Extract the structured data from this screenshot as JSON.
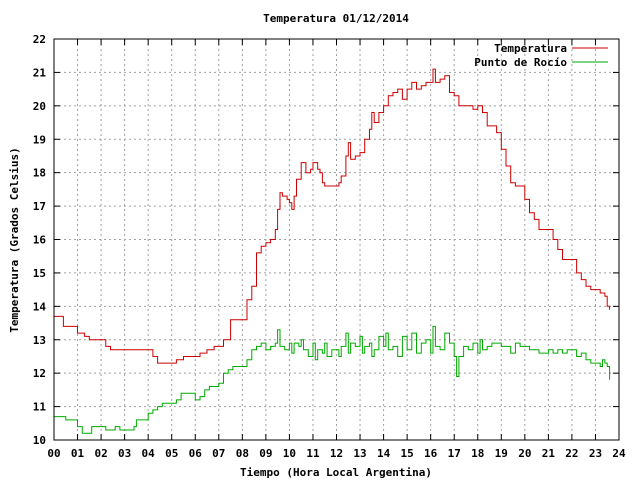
{
  "chart_data": {
    "type": "line",
    "title": "Temperatura 01/12/2014",
    "xlabel": "Tiempo (Hora Local Argentina)",
    "ylabel": "Temperatura (Grados Celsius)",
    "xlim": [
      0,
      24
    ],
    "ylim": [
      10,
      22
    ],
    "x_ticks": [
      "00",
      "01",
      "02",
      "03",
      "04",
      "05",
      "06",
      "07",
      "08",
      "09",
      "10",
      "11",
      "12",
      "13",
      "14",
      "15",
      "16",
      "17",
      "18",
      "19",
      "20",
      "21",
      "22",
      "23",
      "24"
    ],
    "y_ticks": [
      "10",
      "11",
      "12",
      "13",
      "14",
      "15",
      "16",
      "17",
      "18",
      "19",
      "20",
      "21",
      "22"
    ],
    "grid": true,
    "legend_position": "top-right",
    "series": [
      {
        "name": "Temperatura",
        "color": "#cc0000",
        "points": [
          [
            0.0,
            13.7
          ],
          [
            0.2,
            13.7
          ],
          [
            0.4,
            13.4
          ],
          [
            0.6,
            13.4
          ],
          [
            0.9,
            13.4
          ],
          [
            1.0,
            13.2
          ],
          [
            1.3,
            13.1
          ],
          [
            1.5,
            13.0
          ],
          [
            1.8,
            13.0
          ],
          [
            2.0,
            13.0
          ],
          [
            2.2,
            12.8
          ],
          [
            2.4,
            12.7
          ],
          [
            2.8,
            12.7
          ],
          [
            3.2,
            12.7
          ],
          [
            3.6,
            12.7
          ],
          [
            4.0,
            12.7
          ],
          [
            4.2,
            12.5
          ],
          [
            4.4,
            12.3
          ],
          [
            4.8,
            12.3
          ],
          [
            5.0,
            12.3
          ],
          [
            5.2,
            12.4
          ],
          [
            5.5,
            12.5
          ],
          [
            5.8,
            12.5
          ],
          [
            6.0,
            12.5
          ],
          [
            6.2,
            12.6
          ],
          [
            6.5,
            12.7
          ],
          [
            6.8,
            12.8
          ],
          [
            7.0,
            12.8
          ],
          [
            7.2,
            13.0
          ],
          [
            7.5,
            13.6
          ],
          [
            7.8,
            13.6
          ],
          [
            8.0,
            13.6
          ],
          [
            8.2,
            14.2
          ],
          [
            8.4,
            14.6
          ],
          [
            8.6,
            15.6
          ],
          [
            8.8,
            15.8
          ],
          [
            9.0,
            15.9
          ],
          [
            9.2,
            16.0
          ],
          [
            9.4,
            16.3
          ],
          [
            9.5,
            16.9
          ],
          [
            9.6,
            17.4
          ],
          [
            9.7,
            17.3
          ],
          [
            9.9,
            17.2
          ],
          [
            10.0,
            17.1
          ],
          [
            10.1,
            16.9
          ],
          [
            10.2,
            17.3
          ],
          [
            10.3,
            17.8
          ],
          [
            10.5,
            18.3
          ],
          [
            10.7,
            18.0
          ],
          [
            10.9,
            18.1
          ],
          [
            11.0,
            18.3
          ],
          [
            11.2,
            18.1
          ],
          [
            11.3,
            18.0
          ],
          [
            11.4,
            17.7
          ],
          [
            11.5,
            17.6
          ],
          [
            11.8,
            17.6
          ],
          [
            12.1,
            17.7
          ],
          [
            12.2,
            17.9
          ],
          [
            12.4,
            18.5
          ],
          [
            12.5,
            18.9
          ],
          [
            12.6,
            18.4
          ],
          [
            12.8,
            18.5
          ],
          [
            13.0,
            18.6
          ],
          [
            13.2,
            19.0
          ],
          [
            13.4,
            19.3
          ],
          [
            13.5,
            19.8
          ],
          [
            13.6,
            19.5
          ],
          [
            13.8,
            19.8
          ],
          [
            14.0,
            20.0
          ],
          [
            14.2,
            20.3
          ],
          [
            14.4,
            20.4
          ],
          [
            14.6,
            20.5
          ],
          [
            14.8,
            20.2
          ],
          [
            15.0,
            20.5
          ],
          [
            15.2,
            20.7
          ],
          [
            15.4,
            20.5
          ],
          [
            15.6,
            20.6
          ],
          [
            15.8,
            20.7
          ],
          [
            16.0,
            20.7
          ],
          [
            16.1,
            21.1
          ],
          [
            16.2,
            20.7
          ],
          [
            16.4,
            20.8
          ],
          [
            16.6,
            20.9
          ],
          [
            16.8,
            20.4
          ],
          [
            17.0,
            20.3
          ],
          [
            17.2,
            20.0
          ],
          [
            17.4,
            20.0
          ],
          [
            17.6,
            20.0
          ],
          [
            17.8,
            19.9
          ],
          [
            18.0,
            20.0
          ],
          [
            18.2,
            19.8
          ],
          [
            18.4,
            19.4
          ],
          [
            18.6,
            19.4
          ],
          [
            18.8,
            19.2
          ],
          [
            19.0,
            18.7
          ],
          [
            19.2,
            18.2
          ],
          [
            19.4,
            17.7
          ],
          [
            19.6,
            17.6
          ],
          [
            19.8,
            17.6
          ],
          [
            20.0,
            17.2
          ],
          [
            20.2,
            16.8
          ],
          [
            20.4,
            16.6
          ],
          [
            20.6,
            16.3
          ],
          [
            20.8,
            16.3
          ],
          [
            21.0,
            16.3
          ],
          [
            21.2,
            16.0
          ],
          [
            21.4,
            15.7
          ],
          [
            21.6,
            15.4
          ],
          [
            21.8,
            15.4
          ],
          [
            22.0,
            15.4
          ],
          [
            22.2,
            15.0
          ],
          [
            22.4,
            14.8
          ],
          [
            22.6,
            14.6
          ],
          [
            22.8,
            14.5
          ],
          [
            23.0,
            14.5
          ],
          [
            23.2,
            14.4
          ],
          [
            23.4,
            14.3
          ],
          [
            23.5,
            14.0
          ],
          [
            23.6,
            13.9
          ]
        ]
      },
      {
        "name": "Punto de Rocío",
        "color": "#00aa00",
        "points": [
          [
            0.0,
            10.7
          ],
          [
            0.3,
            10.7
          ],
          [
            0.5,
            10.6
          ],
          [
            0.8,
            10.6
          ],
          [
            1.0,
            10.4
          ],
          [
            1.2,
            10.2
          ],
          [
            1.5,
            10.2
          ],
          [
            1.6,
            10.4
          ],
          [
            2.0,
            10.4
          ],
          [
            2.2,
            10.3
          ],
          [
            2.6,
            10.4
          ],
          [
            2.8,
            10.3
          ],
          [
            3.0,
            10.3
          ],
          [
            3.2,
            10.3
          ],
          [
            3.4,
            10.4
          ],
          [
            3.5,
            10.6
          ],
          [
            3.8,
            10.6
          ],
          [
            4.0,
            10.8
          ],
          [
            4.2,
            10.9
          ],
          [
            4.4,
            11.0
          ],
          [
            4.6,
            11.1
          ],
          [
            4.8,
            11.1
          ],
          [
            5.0,
            11.1
          ],
          [
            5.2,
            11.2
          ],
          [
            5.4,
            11.4
          ],
          [
            5.6,
            11.4
          ],
          [
            5.8,
            11.4
          ],
          [
            6.0,
            11.2
          ],
          [
            6.2,
            11.3
          ],
          [
            6.4,
            11.5
          ],
          [
            6.6,
            11.6
          ],
          [
            7.0,
            11.7
          ],
          [
            7.2,
            12.0
          ],
          [
            7.4,
            12.1
          ],
          [
            7.6,
            12.2
          ],
          [
            7.8,
            12.2
          ],
          [
            8.0,
            12.2
          ],
          [
            8.2,
            12.4
          ],
          [
            8.4,
            12.7
          ],
          [
            8.6,
            12.8
          ],
          [
            8.8,
            12.9
          ],
          [
            9.0,
            12.7
          ],
          [
            9.2,
            12.8
          ],
          [
            9.4,
            12.9
          ],
          [
            9.5,
            13.3
          ],
          [
            9.6,
            12.8
          ],
          [
            9.8,
            12.7
          ],
          [
            10.0,
            12.9
          ],
          [
            10.1,
            12.6
          ],
          [
            10.2,
            12.9
          ],
          [
            10.4,
            12.8
          ],
          [
            10.5,
            13.0
          ],
          [
            10.6,
            12.7
          ],
          [
            10.8,
            12.5
          ],
          [
            11.0,
            12.9
          ],
          [
            11.1,
            12.4
          ],
          [
            11.2,
            12.7
          ],
          [
            11.4,
            12.6
          ],
          [
            11.5,
            12.9
          ],
          [
            11.6,
            12.5
          ],
          [
            11.8,
            12.7
          ],
          [
            12.0,
            12.7
          ],
          [
            12.1,
            12.5
          ],
          [
            12.2,
            12.8
          ],
          [
            12.4,
            13.2
          ],
          [
            12.5,
            12.6
          ],
          [
            12.6,
            12.9
          ],
          [
            12.8,
            12.8
          ],
          [
            13.0,
            13.1
          ],
          [
            13.1,
            12.6
          ],
          [
            13.2,
            12.8
          ],
          [
            13.4,
            12.9
          ],
          [
            13.5,
            12.5
          ],
          [
            13.6,
            12.7
          ],
          [
            13.8,
            13.1
          ],
          [
            14.0,
            12.8
          ],
          [
            14.1,
            13.2
          ],
          [
            14.2,
            12.7
          ],
          [
            14.4,
            12.8
          ],
          [
            14.6,
            12.5
          ],
          [
            14.8,
            13.1
          ],
          [
            15.0,
            12.7
          ],
          [
            15.2,
            13.2
          ],
          [
            15.4,
            12.6
          ],
          [
            15.6,
            12.9
          ],
          [
            15.8,
            13.0
          ],
          [
            16.0,
            12.6
          ],
          [
            16.1,
            13.4
          ],
          [
            16.2,
            12.8
          ],
          [
            16.4,
            12.7
          ],
          [
            16.6,
            13.2
          ],
          [
            16.8,
            12.9
          ],
          [
            17.0,
            12.5
          ],
          [
            17.1,
            11.9
          ],
          [
            17.2,
            12.5
          ],
          [
            17.4,
            12.8
          ],
          [
            17.6,
            12.7
          ],
          [
            17.8,
            12.9
          ],
          [
            18.0,
            12.6
          ],
          [
            18.1,
            13.0
          ],
          [
            18.2,
            12.7
          ],
          [
            18.4,
            12.8
          ],
          [
            18.6,
            12.9
          ],
          [
            18.8,
            12.9
          ],
          [
            19.0,
            12.8
          ],
          [
            19.2,
            12.8
          ],
          [
            19.4,
            12.6
          ],
          [
            19.6,
            12.9
          ],
          [
            19.8,
            12.8
          ],
          [
            20.0,
            12.8
          ],
          [
            20.2,
            12.7
          ],
          [
            20.4,
            12.7
          ],
          [
            20.6,
            12.6
          ],
          [
            20.8,
            12.6
          ],
          [
            21.0,
            12.7
          ],
          [
            21.2,
            12.6
          ],
          [
            21.4,
            12.7
          ],
          [
            21.6,
            12.6
          ],
          [
            21.8,
            12.7
          ],
          [
            22.0,
            12.7
          ],
          [
            22.2,
            12.5
          ],
          [
            22.4,
            12.6
          ],
          [
            22.6,
            12.4
          ],
          [
            22.8,
            12.3
          ],
          [
            23.0,
            12.3
          ],
          [
            23.2,
            12.2
          ],
          [
            23.3,
            12.4
          ],
          [
            23.4,
            12.3
          ],
          [
            23.5,
            12.2
          ],
          [
            23.6,
            11.8
          ]
        ]
      }
    ]
  }
}
